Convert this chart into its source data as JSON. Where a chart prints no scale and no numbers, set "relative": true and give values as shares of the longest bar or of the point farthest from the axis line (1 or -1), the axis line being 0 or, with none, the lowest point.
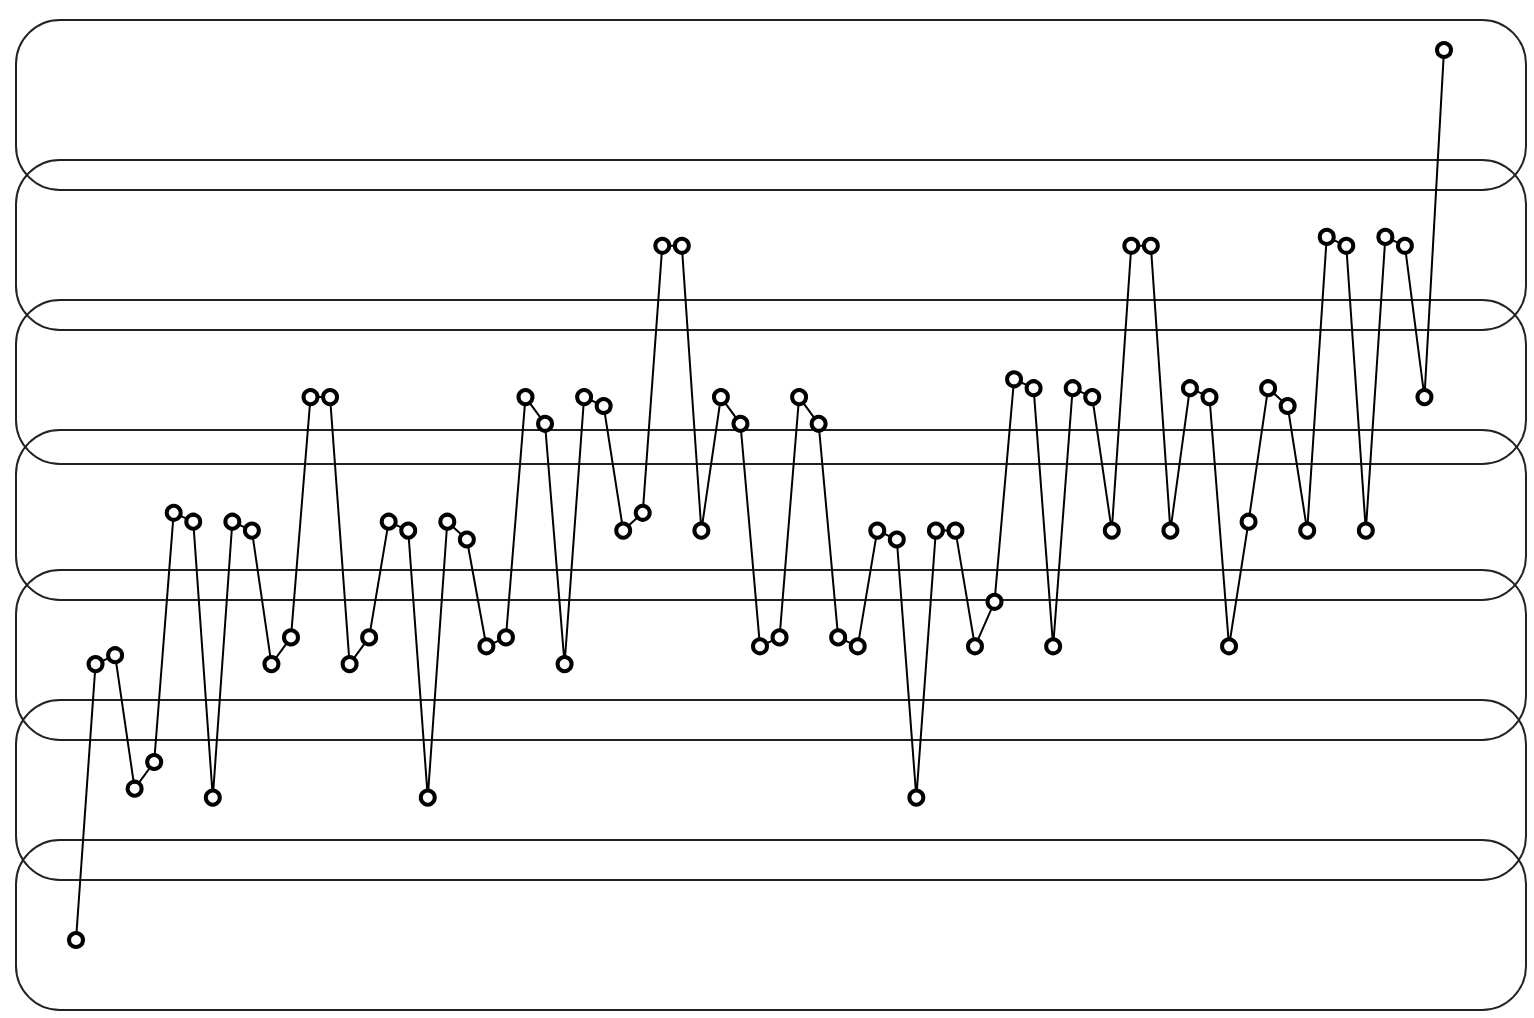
{
  "chart_data": {
    "type": "line",
    "relative": true,
    "marker": "circle",
    "line_style": "solid",
    "categories": [
      null,
      null,
      null,
      null,
      null,
      null,
      null,
      null,
      null,
      null,
      null,
      null,
      null,
      null,
      null,
      null,
      null,
      null,
      null,
      null,
      null,
      null,
      null,
      null,
      null,
      null,
      null,
      null,
      null,
      null,
      null,
      null,
      null,
      null,
      null,
      null,
      null,
      null,
      null,
      null,
      null,
      null,
      null,
      null,
      null,
      null,
      null,
      null,
      null,
      null,
      null,
      null,
      null,
      null,
      null,
      null,
      null,
      null,
      null,
      null,
      null,
      null,
      null,
      null,
      null,
      null,
      null,
      null,
      null,
      null,
      null
    ],
    "series": [
      {
        "color": "#000000",
        "values": [
          0,
          0.31,
          0.32,
          0.17,
          0.2,
          0.48,
          0.47,
          0.16,
          0.47,
          0.46,
          0.31,
          0.34,
          0.61,
          0.61,
          0.31,
          0.34,
          0.47,
          0.46,
          0.16,
          0.47,
          0.45,
          0.33,
          0.34,
          0.61,
          0.58,
          0.31,
          0.61,
          0.6,
          0.46,
          0.48,
          0.78,
          0.78,
          0.46,
          0.61,
          0.58,
          0.33,
          0.34,
          0.61,
          0.58,
          0.34,
          0.33,
          0.46,
          0.45,
          0.16,
          0.46,
          0.46,
          0.33,
          0.38,
          0.63,
          0.62,
          0.33,
          0.62,
          0.61,
          0.46,
          0.78,
          0.78,
          0.46,
          0.62,
          0.61,
          0.33,
          0.47,
          0.62,
          0.6,
          0.46,
          0.79,
          0.78,
          0.46,
          0.79,
          0.78,
          0.61,
          1
        ]
      }
    ]
  }
}
